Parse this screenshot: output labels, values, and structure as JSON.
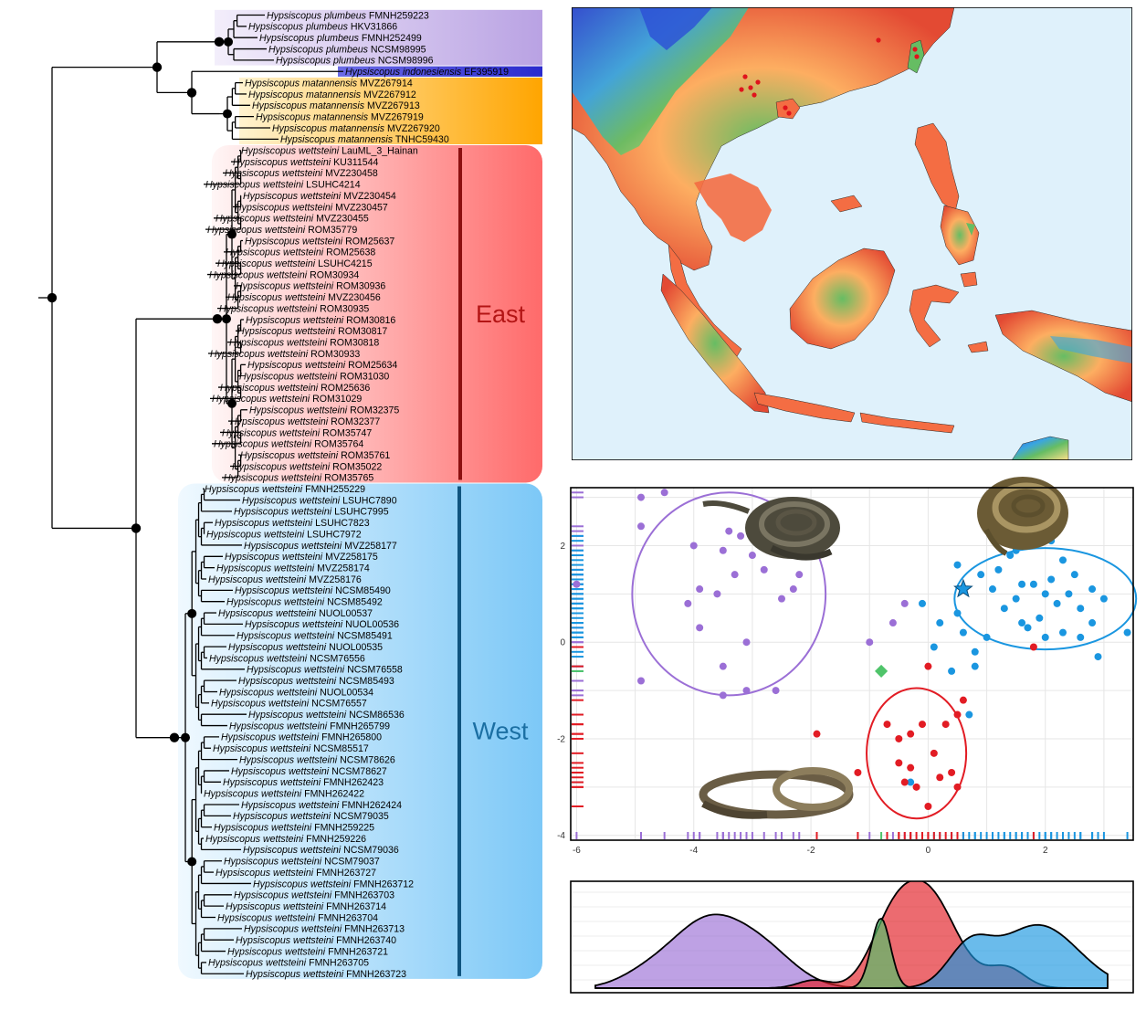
{
  "figure": {
    "clades": [
      {
        "key": "plumbeus",
        "color_from": "#f3eefb",
        "color_to": "#b9a2e3",
        "tips": [
          {
            "species": "Hypsiscopus plumbeus",
            "voucher": "FMNH259223"
          },
          {
            "species": "Hypsiscopus plumbeus",
            "voucher": "HKV31866"
          },
          {
            "species": "Hypsiscopus plumbeus",
            "voucher": "FMNH252499"
          },
          {
            "species": "Hypsiscopus plumbeus",
            "voucher": "NCSM98995"
          },
          {
            "species": "Hypsiscopus plumbeus",
            "voucher": "NCSM98996"
          }
        ]
      },
      {
        "key": "indonesiensis",
        "color_from": "#4444d8",
        "color_to": "#3535d0",
        "tips": [
          {
            "species": "Hypsiscopus indonesiensis",
            "voucher": "EF395919"
          }
        ]
      },
      {
        "key": "matannensis",
        "color_from": "#fff3cf",
        "color_to": "#ffa500",
        "tips": [
          {
            "species": "Hypsiscopus matannensis",
            "voucher": "MVZ267914"
          },
          {
            "species": "Hypsiscopus matannensis",
            "voucher": "MVZ267912"
          },
          {
            "species": "Hypsiscopus matannensis",
            "voucher": "MVZ267913"
          },
          {
            "species": "Hypsiscopus matannensis",
            "voucher": "MVZ267919"
          },
          {
            "species": "Hypsiscopus matannensis",
            "voucher": "MVZ267920"
          },
          {
            "species": "Hypsiscopus matannensis",
            "voucher": "TNHC59430"
          }
        ]
      },
      {
        "key": "east",
        "label": "East",
        "label_color": "#b31515",
        "bar_color": "#8b1010",
        "color_from": "#fff3f3",
        "color_to": "#ff6b6b",
        "tips": [
          {
            "species": "Hypsiscopus wettsteini",
            "voucher": "LauML_3_Hainan"
          },
          {
            "species": "Hypsiscopus wettsteini",
            "voucher": "KU311544"
          },
          {
            "species": "Hypsiscopus wettsteini",
            "voucher": "MVZ230458"
          },
          {
            "species": "Hypsiscopus wettsteini",
            "voucher": "LSUHC4214"
          },
          {
            "species": "Hypsiscopus wettsteini",
            "voucher": "MVZ230454"
          },
          {
            "species": "Hypsiscopus wettsteini",
            "voucher": "MVZ230457"
          },
          {
            "species": "Hypsiscopus wettsteini",
            "voucher": "MVZ230455"
          },
          {
            "species": "Hypsiscopus wettsteini",
            "voucher": "ROM35779"
          },
          {
            "species": "Hypsiscopus wettsteini",
            "voucher": "ROM25637"
          },
          {
            "species": "Hypsiscopus wettsteini",
            "voucher": "ROM25638"
          },
          {
            "species": "Hypsiscopus wettsteini",
            "voucher": "LSUHC4215"
          },
          {
            "species": "Hypsiscopus wettsteini",
            "voucher": "ROM30934"
          },
          {
            "species": "Hypsiscopus wettsteini",
            "voucher": "ROM30936"
          },
          {
            "species": "Hypsiscopus wettsteini",
            "voucher": "MVZ230456"
          },
          {
            "species": "Hypsiscopus wettsteini",
            "voucher": "ROM30935"
          },
          {
            "species": "Hypsiscopus wettsteini",
            "voucher": "ROM30816"
          },
          {
            "species": "Hypsiscopus wettsteini",
            "voucher": "ROM30817"
          },
          {
            "species": "Hypsiscopus wettsteini",
            "voucher": "ROM30818"
          },
          {
            "species": "Hypsiscopus wettsteini",
            "voucher": "ROM30933"
          },
          {
            "species": "Hypsiscopus wettsteini",
            "voucher": "ROM25634"
          },
          {
            "species": "Hypsiscopus wettsteini",
            "voucher": "ROM31030"
          },
          {
            "species": "Hypsiscopus wettsteini",
            "voucher": "ROM25636"
          },
          {
            "species": "Hypsiscopus wettsteini",
            "voucher": "ROM31029"
          },
          {
            "species": "Hypsiscopus wettsteini",
            "voucher": "ROM32375"
          },
          {
            "species": "Hypsiscopus wettsteini",
            "voucher": "ROM32377"
          },
          {
            "species": "Hypsiscopus wettsteini",
            "voucher": "ROM35747"
          },
          {
            "species": "Hypsiscopus wettsteini",
            "voucher": "ROM35764"
          },
          {
            "species": "Hypsiscopus wettsteini",
            "voucher": "ROM35761"
          },
          {
            "species": "Hypsiscopus wettsteini",
            "voucher": "ROM35022"
          },
          {
            "species": "Hypsiscopus wettsteini",
            "voucher": "ROM35765"
          }
        ]
      },
      {
        "key": "west",
        "label": "West",
        "label_color": "#1b6fa3",
        "bar_color": "#10547f",
        "color_from": "#eef8ff",
        "color_to": "#7dc9f7",
        "tips": [
          {
            "species": "Hypsiscopus wettsteini",
            "voucher": "FMNH255229"
          },
          {
            "species": "Hypsiscopus wettsteini",
            "voucher": "LSUHC7890"
          },
          {
            "species": "Hypsiscopus wettsteini",
            "voucher": "LSUHC7995"
          },
          {
            "species": "Hypsiscopus wettsteini",
            "voucher": "LSUHC7823"
          },
          {
            "species": "Hypsiscopus wettsteini",
            "voucher": "LSUHC7972"
          },
          {
            "species": "Hypsiscopus wettsteini",
            "voucher": "MVZ258177"
          },
          {
            "species": "Hypsiscopus wettsteini",
            "voucher": "MVZ258175"
          },
          {
            "species": "Hypsiscopus wettsteini",
            "voucher": "MVZ258174"
          },
          {
            "species": "Hypsiscopus wettsteini",
            "voucher": "MVZ258176"
          },
          {
            "species": "Hypsiscopus wettsteini",
            "voucher": "NCSM85490"
          },
          {
            "species": "Hypsiscopus wettsteini",
            "voucher": "NCSM85492"
          },
          {
            "species": "Hypsiscopus wettsteini",
            "voucher": "NUOL00537"
          },
          {
            "species": "Hypsiscopus wettsteini",
            "voucher": "NUOL00536"
          },
          {
            "species": "Hypsiscopus wettsteini",
            "voucher": "NCSM85491"
          },
          {
            "species": "Hypsiscopus wettsteini",
            "voucher": "NUOL00535"
          },
          {
            "species": "Hypsiscopus wettsteini",
            "voucher": "NCSM76556"
          },
          {
            "species": "Hypsiscopus wettsteini",
            "voucher": "NCSM76558"
          },
          {
            "species": "Hypsiscopus wettsteini",
            "voucher": "NCSM85493"
          },
          {
            "species": "Hypsiscopus wettsteini",
            "voucher": "NUOL00534"
          },
          {
            "species": "Hypsiscopus wettsteini",
            "voucher": "NCSM76557"
          },
          {
            "species": "Hypsiscopus wettsteini",
            "voucher": "NCSM86536"
          },
          {
            "species": "Hypsiscopus wettsteini",
            "voucher": "FMNH265799"
          },
          {
            "species": "Hypsiscopus wettsteini",
            "voucher": "FMNH265800"
          },
          {
            "species": "Hypsiscopus wettsteini",
            "voucher": "NCSM85517"
          },
          {
            "species": "Hypsiscopus wettsteini",
            "voucher": "NCSM78626"
          },
          {
            "species": "Hypsiscopus wettsteini",
            "voucher": "NCSM78627"
          },
          {
            "species": "Hypsiscopus wettsteini",
            "voucher": "FMNH262423"
          },
          {
            "species": "Hypsiscopus wettsteini",
            "voucher": "FMNH262422"
          },
          {
            "species": "Hypsiscopus wettsteini",
            "voucher": "FMNH262424"
          },
          {
            "species": "Hypsiscopus wettsteini",
            "voucher": "NCSM79035"
          },
          {
            "species": "Hypsiscopus wettsteini",
            "voucher": "FMNH259225"
          },
          {
            "species": "Hypsiscopus wettsteini",
            "voucher": "FMNH259226"
          },
          {
            "species": "Hypsiscopus wettsteini",
            "voucher": "NCSM79036"
          },
          {
            "species": "Hypsiscopus wettsteini",
            "voucher": "NCSM79037"
          },
          {
            "species": "Hypsiscopus wettsteini",
            "voucher": "FMNH263727"
          },
          {
            "species": "Hypsiscopus wettsteini",
            "voucher": "FMNH263712"
          },
          {
            "species": "Hypsiscopus wettsteini",
            "voucher": "FMNH263703"
          },
          {
            "species": "Hypsiscopus wettsteini",
            "voucher": "FMNH263714"
          },
          {
            "species": "Hypsiscopus wettsteini",
            "voucher": "FMNH263704"
          },
          {
            "species": "Hypsiscopus wettsteini",
            "voucher": "FMNH263713"
          },
          {
            "species": "Hypsiscopus wettsteini",
            "voucher": "FMNH263740"
          },
          {
            "species": "Hypsiscopus wettsteini",
            "voucher": "FMNH263721"
          },
          {
            "species": "Hypsiscopus wettsteini",
            "voucher": "FMNH263705"
          },
          {
            "species": "Hypsiscopus wettsteini",
            "voucher": "FMNH263723"
          }
        ]
      }
    ],
    "map": {
      "sea_color": "#dff1fb",
      "occurrence_color": "#e0141c",
      "raster_colors": [
        "#d7301f",
        "#f46d43",
        "#fdae61",
        "#fee08b",
        "#d9ef8b",
        "#66bd63",
        "#1a9850",
        "#3aa6e0",
        "#2c4fd6"
      ]
    },
    "scatter": {
      "series_colors": {
        "purple": "#9b6fd6",
        "blue": "#1a96e0",
        "red": "#e21c24",
        "green": "#4fc46a"
      },
      "x_ticks": [
        "-6",
        "-4",
        "-2",
        "0",
        "2"
      ],
      "y_ticks": [
        "2",
        "0",
        "-2",
        "-4"
      ]
    }
  },
  "chart_data": {
    "type": "scatter",
    "xlim": [
      -6.1,
      3.5
    ],
    "ylim": [
      -4.1,
      3.2
    ],
    "grid": true,
    "x_ticks": [
      -6,
      -4,
      -2,
      0,
      2
    ],
    "y_ticks": [
      2,
      0,
      -2,
      -4
    ],
    "series": [
      {
        "color": "purple",
        "points": [
          [
            -4.9,
            3.0
          ],
          [
            -4.5,
            3.1
          ],
          [
            -6.0,
            1.2
          ],
          [
            -4.9,
            2.4
          ],
          [
            -3.4,
            2.3
          ],
          [
            -3.2,
            2.2
          ],
          [
            -4.0,
            2.0
          ],
          [
            -3.5,
            1.9
          ],
          [
            -3.0,
            1.8
          ],
          [
            -2.8,
            1.5
          ],
          [
            -3.3,
            1.4
          ],
          [
            -3.9,
            1.1
          ],
          [
            -3.6,
            1.0
          ],
          [
            -4.1,
            0.8
          ],
          [
            -2.2,
            1.4
          ],
          [
            -2.3,
            1.1
          ],
          [
            -2.5,
            0.9
          ],
          [
            -3.9,
            0.3
          ],
          [
            -3.1,
            0.0
          ],
          [
            -3.5,
            -0.5
          ],
          [
            -4.9,
            -0.8
          ],
          [
            -3.5,
            -1.1
          ],
          [
            -3.1,
            -1.0
          ],
          [
            -2.6,
            -1.0
          ],
          [
            -1.0,
            0.0
          ],
          [
            -0.6,
            0.4
          ],
          [
            -0.4,
            0.8
          ]
        ]
      },
      {
        "color": "blue",
        "points": [
          [
            1.3,
            2.2
          ],
          [
            2.1,
            2.1
          ],
          [
            1.5,
            1.9
          ],
          [
            0.5,
            1.6
          ],
          [
            1.4,
            1.8
          ],
          [
            2.3,
            1.7
          ],
          [
            2.5,
            1.4
          ],
          [
            2.1,
            1.3
          ],
          [
            1.2,
            1.5
          ],
          [
            0.9,
            1.4
          ],
          [
            1.6,
            1.2
          ],
          [
            1.8,
            1.2
          ],
          [
            2.0,
            1.0
          ],
          [
            1.1,
            1.1
          ],
          [
            1.5,
            0.9
          ],
          [
            2.4,
            1.0
          ],
          [
            2.8,
            1.1
          ],
          [
            3.0,
            0.9
          ],
          [
            2.6,
            0.7
          ],
          [
            2.2,
            0.8
          ],
          [
            2.8,
            0.4
          ],
          [
            2.3,
            0.2
          ],
          [
            1.9,
            0.5
          ],
          [
            1.6,
            0.4
          ],
          [
            2.0,
            0.1
          ],
          [
            1.3,
            0.7
          ],
          [
            1.7,
            0.3
          ],
          [
            2.6,
            0.1
          ],
          [
            3.4,
            0.2
          ],
          [
            2.9,
            -0.3
          ],
          [
            0.8,
            -0.2
          ],
          [
            0.5,
            0.6
          ],
          [
            0.2,
            0.4
          ],
          [
            -0.1,
            0.8
          ],
          [
            1.0,
            0.1
          ],
          [
            0.6,
            0.2
          ],
          [
            0.1,
            -0.1
          ],
          [
            0.8,
            -0.5
          ],
          [
            0.4,
            -0.6
          ],
          [
            0.7,
            -1.5
          ],
          [
            -0.3,
            -2.9
          ]
        ]
      },
      {
        "color": "red",
        "points": [
          [
            1.8,
            -0.1
          ],
          [
            0.0,
            -0.5
          ],
          [
            0.6,
            -1.2
          ],
          [
            0.5,
            -1.5
          ],
          [
            0.3,
            -1.7
          ],
          [
            -0.1,
            -1.7
          ],
          [
            -0.7,
            -1.7
          ],
          [
            -0.3,
            -1.9
          ],
          [
            -0.5,
            -2.0
          ],
          [
            0.1,
            -2.3
          ],
          [
            -0.5,
            -2.5
          ],
          [
            -0.3,
            -2.6
          ],
          [
            -0.4,
            -2.9
          ],
          [
            -0.2,
            -3.0
          ],
          [
            0.2,
            -2.8
          ],
          [
            0.4,
            -2.7
          ],
          [
            0.5,
            -3.0
          ],
          [
            0.0,
            -3.4
          ],
          [
            -1.9,
            -1.9
          ],
          [
            -1.2,
            -2.7
          ]
        ]
      },
      {
        "color": "green",
        "marker": "diamond",
        "points": [
          [
            -0.8,
            -0.6
          ]
        ]
      },
      {
        "color": "blue",
        "marker": "star",
        "points": [
          [
            0.6,
            1.1
          ]
        ]
      }
    ],
    "ellipses": [
      {
        "color": "purple",
        "center": [
          -3.4,
          1.0
        ],
        "rx": 1.65,
        "ry": 2.1
      },
      {
        "color": "blue",
        "center": [
          2.0,
          0.9
        ],
        "rx": 1.55,
        "ry": 1.05
      },
      {
        "color": "red",
        "center": [
          -0.2,
          -2.3
        ],
        "rx": 0.85,
        "ry": 1.35
      }
    ],
    "density": {
      "type": "area",
      "x_range": [
        -6.1,
        3.5
      ],
      "curves": [
        {
          "color": "purple",
          "peaks": [
            [
              -4.0,
              1.0,
              0.7
            ],
            [
              -2.9,
              0.45,
              0.6
            ],
            [
              -5.2,
              0.15,
              0.5
            ]
          ]
        },
        {
          "color": "red",
          "peaks": [
            [
              0.1,
              1.45,
              0.55
            ],
            [
              -0.6,
              0.6,
              0.4
            ],
            [
              1.6,
              0.3,
              0.35
            ],
            [
              -2.0,
              0.12,
              0.3
            ]
          ]
        },
        {
          "color": "blue",
          "peaks": [
            [
              2.2,
              0.95,
              0.75
            ],
            [
              0.9,
              0.55,
              0.4
            ]
          ]
        },
        {
          "color": "green",
          "peaks": [
            [
              -0.75,
              1.05,
              0.18
            ]
          ]
        }
      ]
    }
  }
}
